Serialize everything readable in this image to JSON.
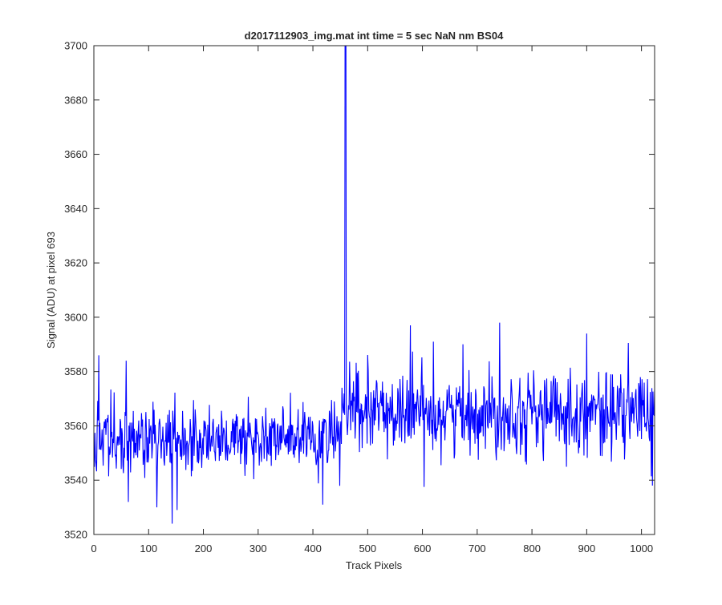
{
  "chart_data": {
    "type": "line",
    "title": "d2017112903_img.mat int time = 5 sec  NaN nm BS04",
    "xlabel": "Track Pixels",
    "ylabel": "Signal (ADU) at pixel 693",
    "xlim": [
      0,
      1024
    ],
    "ylim": [
      3520,
      3700
    ],
    "xticks": [
      0,
      100,
      200,
      300,
      400,
      500,
      600,
      700,
      800,
      900,
      1000
    ],
    "yticks": [
      3520,
      3540,
      3560,
      3580,
      3600,
      3620,
      3640,
      3660,
      3680,
      3700
    ],
    "grid": false,
    "box": true,
    "series": [
      {
        "color": "#0000ff",
        "description": "1024 noisy samples around ~3555 ADU (x<450) and ~3565 ADU (x>=450), with a single spike clipped above 3700 at x≈459",
        "x_start": 1,
        "x_end": 1024,
        "baseline_segments": [
          {
            "x_from": 1,
            "x_to": 450,
            "mean": 3555,
            "noise_std": 6.5
          },
          {
            "x_from": 451,
            "x_to": 1024,
            "mean": 3565,
            "noise_std": 7.5
          }
        ],
        "notable_points": [
          {
            "x": 9,
            "y": 3586
          },
          {
            "x": 59,
            "y": 3584
          },
          {
            "x": 63,
            "y": 3532
          },
          {
            "x": 115,
            "y": 3530
          },
          {
            "x": 143,
            "y": 3524
          },
          {
            "x": 152,
            "y": 3529
          },
          {
            "x": 418,
            "y": 3531
          },
          {
            "x": 459,
            "y": 3700
          },
          {
            "x": 460,
            "y": 3700
          },
          {
            "x": 578,
            "y": 3597
          },
          {
            "x": 620,
            "y": 3591
          },
          {
            "x": 741,
            "y": 3598
          },
          {
            "x": 900,
            "y": 3594
          },
          {
            "x": 1020,
            "y": 3538
          }
        ]
      }
    ]
  }
}
